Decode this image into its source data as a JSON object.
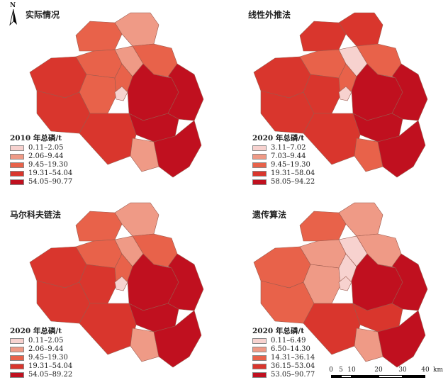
{
  "colors": {
    "c1": "#f7d2cf",
    "c2": "#ef9a86",
    "c3": "#e8624a",
    "c4": "#d9362d",
    "c5": "#c0101f"
  },
  "north_arrow": {
    "label": "N"
  },
  "panels": [
    {
      "title": "实际情况",
      "legend_title": "2010 年总磷/t",
      "classes": [
        "0.11–2.05",
        "2.06–9.44",
        "9.45–19.30",
        "19.31–54.04",
        "54.05–90.77"
      ]
    },
    {
      "title": "线性外推法",
      "legend_title": "2020 年总磷/t",
      "classes": [
        "3.11–7.02",
        "7.03–9.44",
        "9.45–19.30",
        "19.31–58.04",
        "58.05–94.22"
      ]
    },
    {
      "title": "马尔科夫链法",
      "legend_title": "2020 年总磷/t",
      "classes": [
        "0.11–2.05",
        "2.06–9.44",
        "9.45–19.30",
        "19.31–54.04",
        "54.05–89.22"
      ]
    },
    {
      "title": "遗传算法",
      "legend_title": "2020 年总磷/t",
      "classes": [
        "0.11–6.49",
        "6.50–14.30",
        "14.31–36.14",
        "36.15–53.04",
        "53.05–90.77"
      ]
    }
  ],
  "scale_bar": {
    "ticks": [
      "0",
      "5",
      "10",
      "20",
      "30",
      "40"
    ],
    "unit": "km"
  }
}
